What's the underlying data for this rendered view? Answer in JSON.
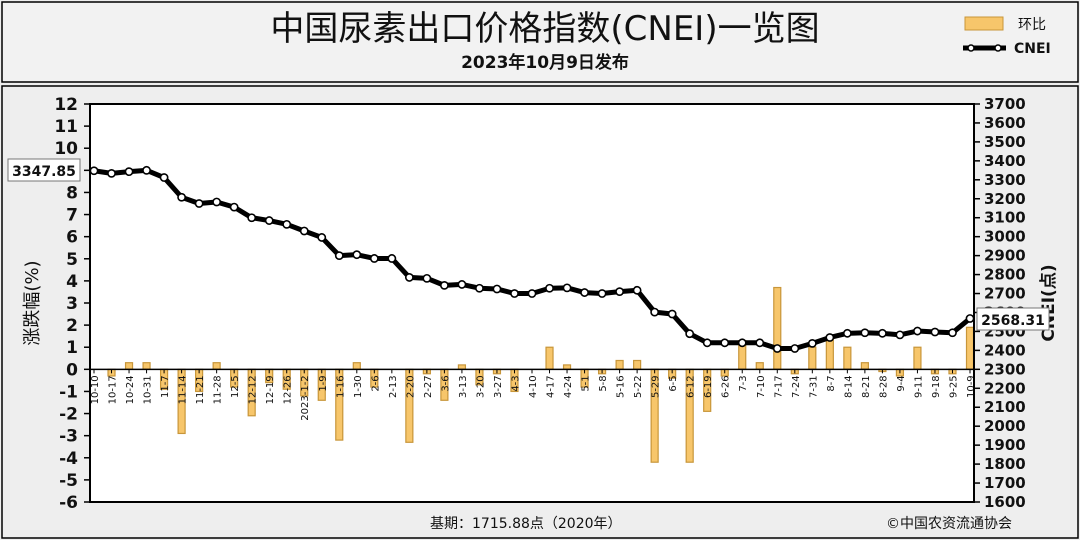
{
  "header": {
    "title": "中国尿素出口价格指数(CNEI)一览图",
    "subtitle": "2023年10月9日发布"
  },
  "footer": {
    "base_note": "基期：1715.88点（2020年）",
    "copyright": "©中国农资流通协会"
  },
  "colors": {
    "bar_fill": "#f7c66b",
    "bar_stroke": "#c8963a",
    "line": "#000000",
    "marker_fill": "#ffffff",
    "header_bg": "#f2f2f2",
    "plot_bg": "#ffffff",
    "page_bg": "#eeeeee"
  },
  "chart_data": {
    "type": "bar+line",
    "legend": {
      "position": "top-right",
      "items": [
        {
          "key": "pct",
          "label": "环比"
        },
        {
          "key": "index",
          "label": "CNEI"
        }
      ]
    },
    "left_axis": {
      "label": "涨跌幅(%)",
      "min": -6,
      "max": 12,
      "step": 1,
      "ticks": [
        "12",
        "11",
        "10",
        "9",
        "8",
        "7",
        "6",
        "5",
        "4",
        "3",
        "2",
        "1",
        "0",
        "-1",
        "-2",
        "-3",
        "-4",
        "-5",
        "-6"
      ]
    },
    "right_axis": {
      "label": "CNEI(点)",
      "min": 1600,
      "max": 3700,
      "step": 100,
      "ticks": [
        "3700",
        "3600",
        "3500",
        "3400",
        "3300",
        "3200",
        "3100",
        "3000",
        "2900",
        "2800",
        "2700",
        "2600",
        "2500",
        "2400",
        "2300",
        "2200",
        "2100",
        "2000",
        "1900",
        "1800",
        "1700",
        "1600"
      ]
    },
    "categories": [
      "10-10",
      "10-17",
      "10-24",
      "10-31",
      "11-7",
      "11-14",
      "11-21",
      "11-28",
      "12-5",
      "12-12",
      "12-19",
      "12-26",
      "2023-1-2",
      "1-9",
      "1-16",
      "1-30",
      "2-6",
      "2-13",
      "2-20",
      "2-27",
      "3-6",
      "3-13",
      "3-20",
      "3-27",
      "4-3",
      "4-10",
      "4-17",
      "4-24",
      "5-1",
      "5-8",
      "5-16",
      "5-22",
      "5-29",
      "6-5",
      "6-12",
      "6-19",
      "6-26",
      "7-3",
      "7-10",
      "7-17",
      "7-24",
      "7-31",
      "8-7",
      "8-14",
      "8-21",
      "8-28",
      "9-4",
      "9-11",
      "9-18",
      "9-25",
      "10-9"
    ],
    "series": [
      {
        "name": "环比",
        "type": "bar",
        "axis": "left",
        "values": [
          0.0,
          -0.3,
          0.3,
          0.3,
          -0.9,
          -2.9,
          -1.0,
          0.3,
          -0.8,
          -2.1,
          -0.6,
          -0.9,
          -1.2,
          -1.4,
          -3.2,
          0.3,
          -0.8,
          0.0,
          -3.3,
          -0.2,
          -1.4,
          0.2,
          -0.7,
          -0.2,
          -1.0,
          0.0,
          1.0,
          0.2,
          -0.8,
          -0.2,
          0.4,
          0.4,
          -4.2,
          -0.4,
          -4.2,
          -1.9,
          -0.3,
          1.3,
          0.3,
          3.7,
          -0.2,
          1.0,
          1.4,
          1.0,
          0.3,
          -0.1,
          -0.3,
          1.0,
          -0.2,
          -0.2,
          1.9
        ]
      },
      {
        "name": "CNEI",
        "type": "line",
        "axis": "right",
        "values": [
          3347.85,
          3334,
          3343,
          3350,
          3312,
          3208,
          3175,
          3183,
          3156,
          3100,
          3085,
          3065,
          3030,
          2996,
          2900,
          2905,
          2885,
          2885,
          2785,
          2780,
          2743,
          2748,
          2728,
          2724,
          2700,
          2700,
          2728,
          2730,
          2705,
          2700,
          2710,
          2717,
          2602,
          2592,
          2488,
          2440,
          2440,
          2440,
          2440,
          2410,
          2410,
          2437,
          2468,
          2490,
          2493,
          2490,
          2482,
          2502,
          2497,
          2493,
          2568.31
        ]
      }
    ],
    "annotations": {
      "start_value": "3347.85",
      "end_value": "2568.31"
    }
  }
}
